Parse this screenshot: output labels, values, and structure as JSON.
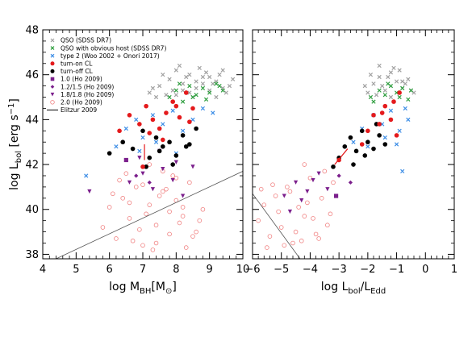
{
  "chart_data": [
    {
      "type": "scatter",
      "panel": "left",
      "xlabel": "log M_BH[M_⊙]",
      "ylabel": "log L_bol [erg s^-1]",
      "xlim": [
        4,
        10
      ],
      "ylim": [
        37.8,
        48
      ],
      "xticks": [
        "4",
        "5",
        "6",
        "7",
        "8",
        "9",
        "10"
      ],
      "yticks": [
        "38",
        "40",
        "42",
        "44",
        "46",
        "48"
      ],
      "legend_position": "top-left",
      "legend": [
        {
          "label": "QSO (SDSS DR7)",
          "marker": "x",
          "color": "#a0a0a0"
        },
        {
          "label": "QSO with obvious host (SDSS DR7)",
          "marker": "x",
          "color": "#2e9e3e"
        },
        {
          "label": "type 2 (Woo 2002 + Onori 2017)",
          "marker": "x",
          "color": "#3c8de6"
        },
        {
          "label": "turn-on CL",
          "marker": "dot",
          "color": "#e41a1c"
        },
        {
          "label": "turn-off CL",
          "marker": "dot",
          "color": "#000000"
        },
        {
          "label": "1.0 (Ho 2009)",
          "marker": "square",
          "color": "#7b1f8c"
        },
        {
          "label": "1.2/1.5 (Ho 2009)",
          "marker": "diamond",
          "color": "#7b1f8c"
        },
        {
          "label": "1.8/1.8 (Ho 2009)",
          "marker": "triangle",
          "color": "#7b1f8c"
        },
        {
          "label": "2.0 (Ho 2009)",
          "marker": "circle-open",
          "color": "#f08080"
        },
        {
          "label": "Elitzur 2009",
          "marker": "line",
          "color": "#000000"
        }
      ],
      "series": [
        {
          "name": "QSO (SDSS DR7)",
          "x": [
            7.2,
            7.5,
            7.8,
            8.0,
            8.2,
            8.4,
            8.6,
            8.8,
            9.0,
            9.2,
            9.4,
            9.6,
            7.4,
            7.9,
            8.3,
            8.7,
            9.1,
            9.5,
            7.6,
            8.1,
            8.5,
            8.9,
            9.3,
            7.3,
            7.7,
            8.2,
            8.6,
            9.0,
            9.4,
            9.7,
            8.0,
            8.4,
            8.8,
            9.2
          ],
          "y": [
            45.2,
            45.5,
            45.8,
            45.1,
            45.6,
            46.0,
            45.4,
            45.9,
            45.3,
            45.7,
            46.2,
            45.5,
            45.0,
            45.3,
            45.9,
            46.3,
            45.6,
            45.2,
            46.0,
            46.4,
            45.0,
            46.1,
            46.0,
            45.4,
            45.1,
            45.3,
            45.7,
            45.9,
            45.4,
            45.8,
            46.2,
            45.2,
            45.6,
            45.0
          ]
        },
        {
          "name": "QSO with obvious host (SDSS DR7)",
          "x": [
            7.8,
            8.0,
            8.2,
            8.4,
            8.6,
            8.8,
            9.0,
            9.2,
            9.4,
            8.1,
            8.5,
            8.9,
            9.3
          ],
          "y": [
            45.0,
            45.3,
            44.8,
            45.5,
            45.1,
            45.4,
            45.2,
            45.6,
            45.3,
            45.6,
            45.0,
            44.9,
            45.5
          ]
        },
        {
          "name": "type 2 (Woo 2002 + Onori 2017)",
          "x": [
            5.3,
            6.2,
            6.5,
            6.8,
            7.0,
            7.3,
            7.6,
            7.9,
            8.2,
            8.5,
            8.8,
            9.1,
            6.9,
            7.4,
            8.0
          ],
          "y": [
            41.5,
            42.8,
            43.6,
            44.0,
            43.2,
            44.2,
            43.8,
            44.4,
            43.5,
            44.0,
            44.5,
            44.3,
            42.6,
            43.0,
            42.5
          ]
        },
        {
          "name": "turn-on CL",
          "x": [
            6.3,
            6.6,
            6.9,
            7.1,
            7.3,
            7.5,
            7.7,
            7.9,
            8.1,
            8.3,
            8.5,
            7.0,
            7.2,
            7.6,
            8.0,
            8.4
          ],
          "y": [
            43.5,
            44.2,
            43.8,
            44.6,
            44.0,
            43.6,
            44.3,
            44.8,
            44.1,
            45.2,
            44.5,
            41.9,
            43.4,
            43.1,
            44.6,
            43.9
          ]
        },
        {
          "name": "turn-off CL",
          "x": [
            6.0,
            6.4,
            6.7,
            7.0,
            7.2,
            7.4,
            7.6,
            7.8,
            8.0,
            8.2,
            8.4,
            8.6,
            7.1,
            7.5,
            7.9,
            8.3
          ],
          "y": [
            42.5,
            43.0,
            42.7,
            43.5,
            42.3,
            43.2,
            42.8,
            43.0,
            42.4,
            43.3,
            42.9,
            43.6,
            41.9,
            42.6,
            42.0,
            42.8
          ]
        },
        {
          "name": "1.0 (Ho 2009)",
          "x": [
            6.5
          ],
          "y": [
            42.2
          ]
        },
        {
          "name": "1.2/1.5 (Ho 2009)",
          "x": [
            6.8,
            7.2
          ],
          "y": [
            41.5,
            41.2
          ]
        },
        {
          "name": "1.8/1.8 (Ho 2009)",
          "x": [
            5.4,
            6.6,
            7.0,
            7.3,
            7.6,
            7.9,
            8.2,
            8.5,
            6.9,
            7.5,
            8.0
          ],
          "y": [
            40.8,
            41.2,
            41.6,
            40.9,
            41.8,
            41.3,
            40.6,
            41.9,
            42.3,
            42.6,
            42.1
          ]
        },
        {
          "name": "2.0 (Ho 2009)",
          "x": [
            5.8,
            6.0,
            6.2,
            6.4,
            6.6,
            6.8,
            7.0,
            7.2,
            7.4,
            7.6,
            7.8,
            8.0,
            8.2,
            8.4,
            8.6,
            8.8,
            6.3,
            6.7,
            7.1,
            7.5,
            7.9,
            8.3,
            8.7,
            6.1,
            6.5,
            6.9,
            7.3,
            7.7,
            8.1,
            8.5,
            6.6,
            7.0,
            7.4,
            7.8,
            8.2,
            7.2,
            7.6,
            8.0
          ],
          "y": [
            39.2,
            40.1,
            38.7,
            40.5,
            39.6,
            41.0,
            38.4,
            40.2,
            39.3,
            40.8,
            38.9,
            40.4,
            39.7,
            41.2,
            39.0,
            40.0,
            41.3,
            38.6,
            39.8,
            40.6,
            41.5,
            38.3,
            39.5,
            40.7,
            41.6,
            39.1,
            38.2,
            40.9,
            39.4,
            38.8,
            40.3,
            41.1,
            38.5,
            39.9,
            40.1,
            42.0,
            41.7,
            41.4
          ]
        }
      ],
      "lines": [
        {
          "name": "Elitzur 2009",
          "x": [
            4.4,
            10.0
          ],
          "y": [
            37.8,
            41.7
          ]
        },
        {
          "name": "turn-on pair",
          "x": [
            7.05,
            7.05
          ],
          "y": [
            42.9,
            42.2
          ],
          "color": "#e41a1c"
        }
      ]
    },
    {
      "type": "scatter",
      "panel": "right",
      "xlabel": "log L_bol/L_Edd",
      "ylabel": "",
      "xlim": [
        -6,
        1
      ],
      "ylim": [
        37.8,
        48
      ],
      "xticks": [
        "−6",
        "−5",
        "−4",
        "−3",
        "−2",
        "−1",
        "0",
        "1"
      ],
      "series": [
        {
          "name": "QSO (SDSS DR7)",
          "x": [
            -2.0,
            -1.8,
            -1.6,
            -1.4,
            -1.2,
            -1.0,
            -0.8,
            -0.6,
            -0.4,
            -1.9,
            -1.5,
            -1.1,
            -0.7,
            -1.7,
            -1.3,
            -0.9,
            -0.5,
            -2.1,
            -1.6,
            -1.2,
            -0.8
          ],
          "y": [
            45.2,
            45.6,
            45.9,
            45.3,
            46.1,
            45.7,
            45.4,
            45.8,
            45.2,
            46.0,
            45.5,
            46.3,
            45.6,
            45.1,
            45.9,
            46.2,
            45.3,
            45.5,
            46.4,
            45.0,
            45.7
          ]
        },
        {
          "name": "QSO with obvious host (SDSS DR7)",
          "x": [
            -1.9,
            -1.6,
            -1.4,
            -1.2,
            -1.0,
            -0.8,
            -0.6,
            -1.8,
            -1.3,
            -0.9,
            -0.5
          ],
          "y": [
            45.0,
            45.3,
            45.1,
            45.5,
            45.2,
            45.4,
            44.9,
            44.8,
            45.6,
            45.0,
            45.3
          ]
        },
        {
          "name": "type 2 (Woo 2002 + Onori 2017)",
          "x": [
            -2.5,
            -2.2,
            -1.8,
            -1.5,
            -1.2,
            -0.9,
            -0.6,
            -2.0,
            -1.4,
            -1.0,
            -0.7,
            -0.8
          ],
          "y": [
            43.0,
            43.6,
            44.2,
            43.8,
            44.4,
            43.5,
            44.0,
            42.8,
            43.2,
            42.9,
            44.5,
            41.7
          ]
        },
        {
          "name": "turn-on CL",
          "x": [
            -2.0,
            -1.8,
            -1.6,
            -1.4,
            -1.2,
            -1.0,
            -2.2,
            -1.5,
            -1.1,
            -0.9,
            -3.0
          ],
          "y": [
            43.5,
            44.2,
            43.8,
            44.6,
            44.0,
            43.3,
            42.9,
            44.3,
            44.8,
            45.2,
            42.2
          ]
        },
        {
          "name": "turn-off CL",
          "x": [
            -3.0,
            -2.8,
            -2.6,
            -2.4,
            -2.2,
            -2.0,
            -1.8,
            -1.6,
            -1.4,
            -2.5,
            -2.1,
            -1.7,
            -3.2
          ],
          "y": [
            42.3,
            42.8,
            43.2,
            42.6,
            43.5,
            43.0,
            42.7,
            43.3,
            42.9,
            42.0,
            42.4,
            43.8,
            41.9
          ]
        },
        {
          "name": "1.0 (Ho 2009)",
          "x": [
            -3.1
          ],
          "y": [
            40.6
          ]
        },
        {
          "name": "1.2/1.5 (Ho 2009)",
          "x": [
            -3.0,
            -2.6
          ],
          "y": [
            41.5,
            41.2
          ]
        },
        {
          "name": "1.8/1.8 (Ho 2009)",
          "x": [
            -4.9,
            -4.5,
            -4.1,
            -3.7,
            -3.4,
            -4.3,
            -3.9,
            -4.7
          ],
          "y": [
            40.6,
            41.2,
            40.8,
            41.6,
            40.9,
            40.4,
            41.3,
            39.9
          ]
        },
        {
          "name": "2.0 (Ho 2009)",
          "x": [
            -5.8,
            -5.6,
            -5.4,
            -5.2,
            -5.0,
            -4.8,
            -4.6,
            -4.4,
            -4.2,
            -4.0,
            -3.8,
            -3.6,
            -3.4,
            -3.2,
            -5.5,
            -5.1,
            -4.7,
            -4.3,
            -3.9,
            -3.5,
            -5.3,
            -4.9,
            -4.5,
            -4.1,
            -3.7,
            -5.7,
            -3.3,
            -4.2
          ],
          "y": [
            39.5,
            40.2,
            38.8,
            40.6,
            39.2,
            41.0,
            38.5,
            40.1,
            39.7,
            41.4,
            38.9,
            40.5,
            39.3,
            41.2,
            38.3,
            39.9,
            40.8,
            38.6,
            39.6,
            41.7,
            41.1,
            38.4,
            39.0,
            40.3,
            38.7,
            40.9,
            39.8,
            42.0
          ]
        }
      ],
      "lines": [
        {
          "name": "Elitzur 2009",
          "x": [
            -6.0,
            -4.35
          ],
          "y": [
            40.7,
            37.8
          ]
        },
        {
          "name": "turn-on pair",
          "x": [
            -3.15,
            -2.7
          ],
          "y": [
            42.0,
            42.7
          ],
          "color": "#e41a1c"
        }
      ]
    }
  ]
}
